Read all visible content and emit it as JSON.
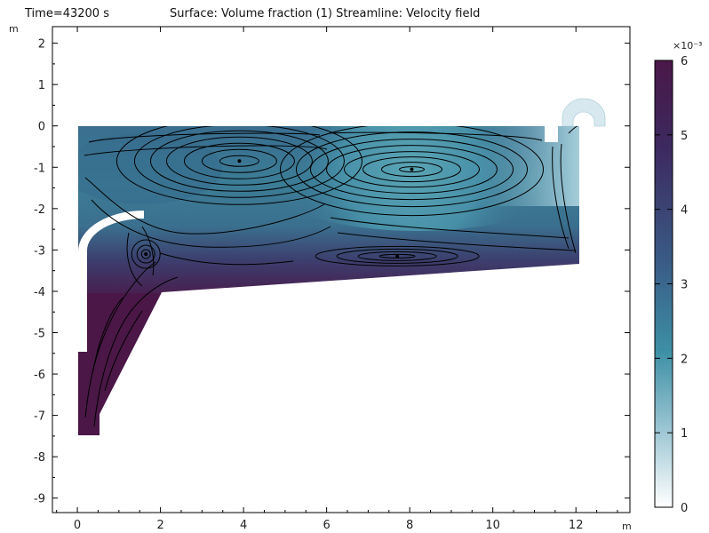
{
  "header": {
    "time_label": "Time=43200 s",
    "plot_title": "Surface: Volume fraction (1)  Streamline: Velocity field"
  },
  "axes": {
    "x_unit": "m",
    "y_unit": "m"
  },
  "colorbar": {
    "exponent_label": "×10⁻³",
    "ticks": [
      "0",
      "1",
      "2",
      "3",
      "4",
      "5",
      "6"
    ],
    "colors": [
      "#ffffff",
      "#9ec7d4",
      "#3d8fa5",
      "#3a5b86",
      "#3c2a60",
      "#4a1848"
    ]
  },
  "chart_data": {
    "type": "heatmap",
    "title": "Surface: Volume fraction (1)  Streamline: Velocity field",
    "xlabel": "m",
    "ylabel": "m",
    "xlim": [
      -0.6,
      13.3
    ],
    "ylim": [
      -9.35,
      2.4
    ],
    "x_ticks": [
      "0",
      "2",
      "4",
      "6",
      "8",
      "10",
      "12"
    ],
    "y_ticks": [
      "2",
      "1",
      "0",
      "-1",
      "-2",
      "-3",
      "-4",
      "-5",
      "-6",
      "-7",
      "-8",
      "-9"
    ],
    "color_range": [
      0,
      0.006
    ],
    "vortex_centers": [
      [
        3.9,
        -0.85
      ],
      [
        8.05,
        -1.05
      ],
      [
        7.7,
        -3.15
      ],
      [
        1.65,
        -3.1
      ]
    ]
  }
}
